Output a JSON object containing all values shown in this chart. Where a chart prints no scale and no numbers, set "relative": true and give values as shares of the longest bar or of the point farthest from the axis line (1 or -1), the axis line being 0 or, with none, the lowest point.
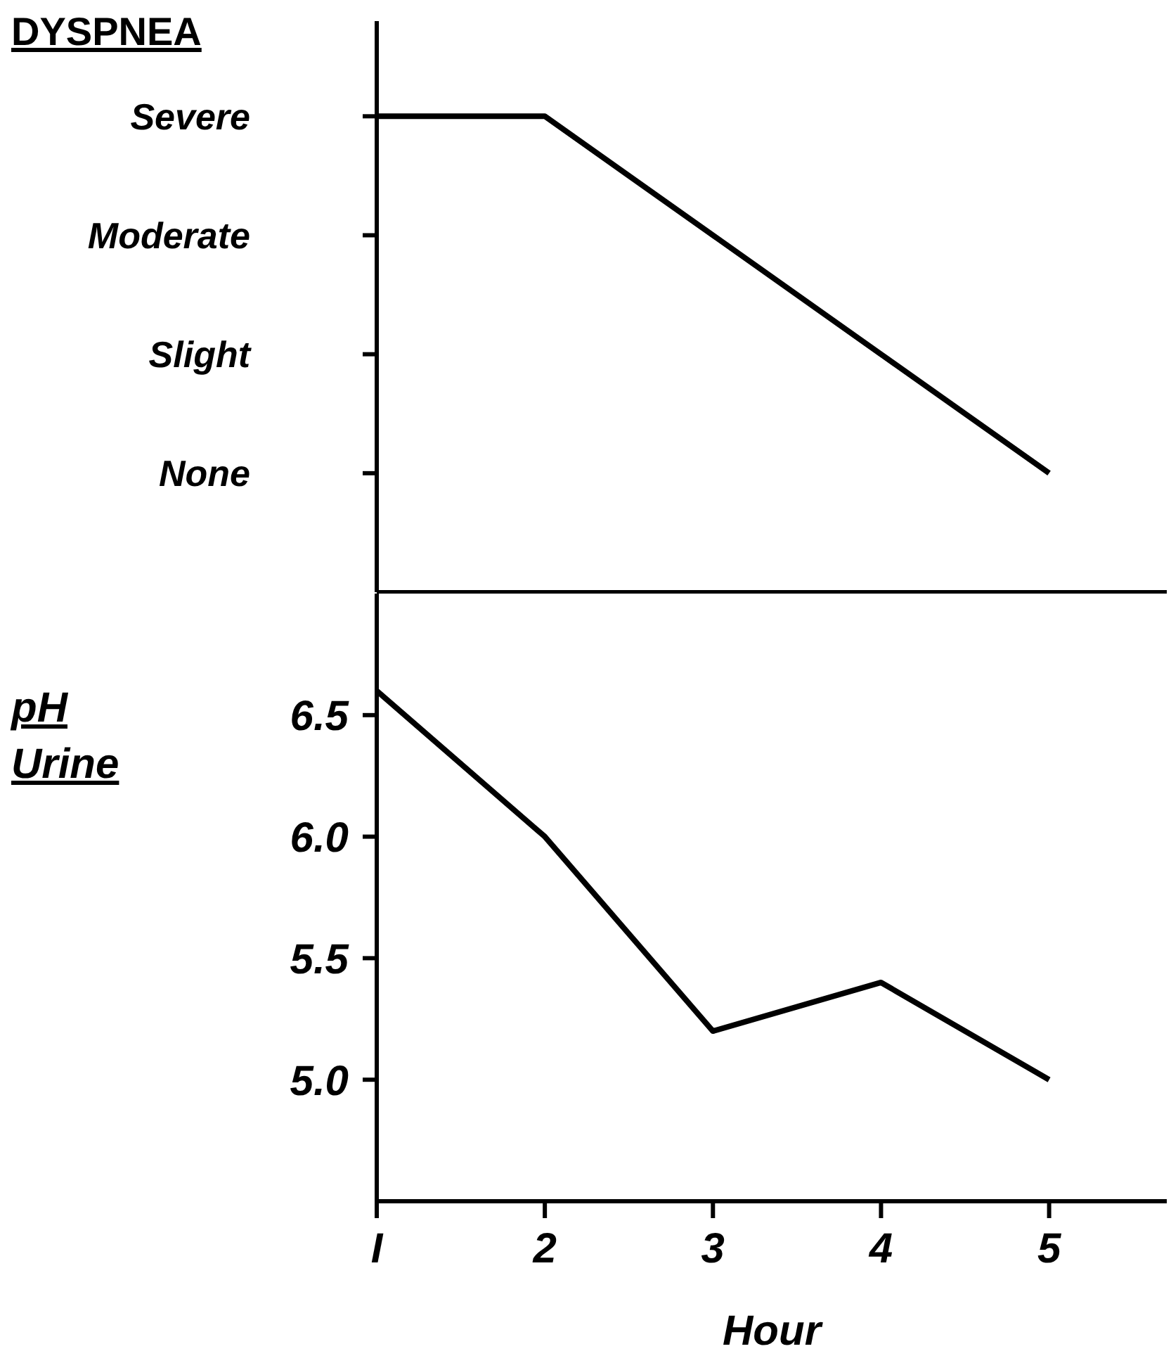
{
  "chart_data": [
    {
      "type": "line",
      "ylabel": "DYSPNEA",
      "x": [
        1,
        2,
        3,
        4,
        5
      ],
      "xlim": [
        1,
        5.7
      ],
      "relative": true,
      "annotations": [
        "Severe",
        "Moderate",
        "Slight",
        "None"
      ],
      "tick_labels": "y",
      "marker": "none",
      "line_style": "solid",
      "series": [
        {
          "color": "#000000",
          "values": [
            1,
            1,
            0.75,
            0.5,
            0.25
          ]
        }
      ]
    },
    {
      "type": "line",
      "ylabel": "pH Urine",
      "xlabel": "Hour",
      "x": [
        1,
        2,
        3,
        4,
        5
      ],
      "xlim": [
        1,
        5.7
      ],
      "xticks": [
        {
          "value": 1,
          "label": "I"
        },
        2,
        3,
        4,
        5
      ],
      "ylim": [
        4.5,
        7.0
      ],
      "yticks": [
        {
          "value": 5.0,
          "label": "5.0"
        },
        {
          "value": 5.5,
          "label": "5.5"
        },
        {
          "value": 6.0,
          "label": "6.0"
        },
        {
          "value": 6.5,
          "label": "6.5"
        }
      ],
      "marker": "none",
      "line_style": "solid",
      "series": [
        {
          "color": "#000000",
          "values": [
            6.6,
            6.0,
            5.2,
            5.4,
            5.0
          ]
        }
      ]
    }
  ]
}
